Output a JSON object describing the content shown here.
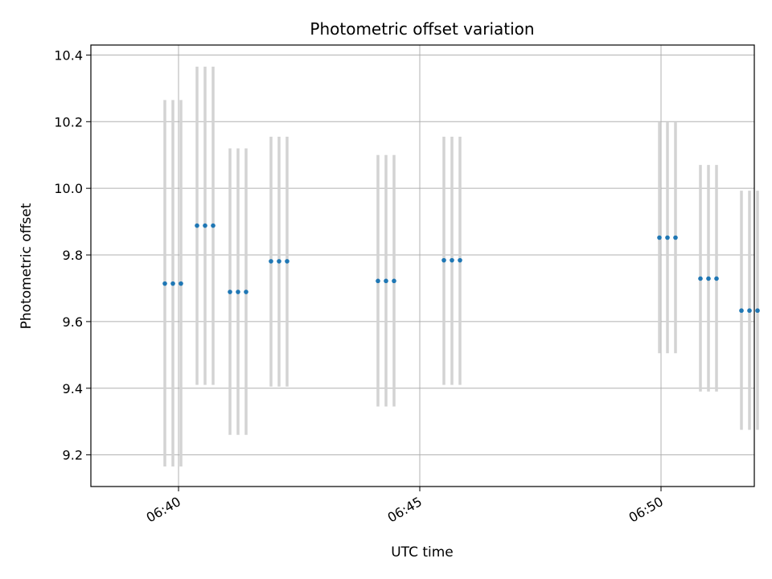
{
  "chart_data": {
    "type": "scatter",
    "title": "Photometric offset variation",
    "xlabel": "UTC time",
    "ylabel": "Photometric offset",
    "x_unit": "UTC minutes since 00:00",
    "xlim": [
      "06:38:11",
      "06:51:56"
    ],
    "ylim": [
      9.105,
      10.43
    ],
    "x_ticks": [
      "06:40",
      "06:45",
      "06:50"
    ],
    "y_ticks": [
      "9.2",
      "9.4",
      "9.6",
      "9.8",
      "10.0",
      "10.2",
      "10.4"
    ],
    "grid": true,
    "colors": {
      "points": "#1f77b4",
      "error_bars": "#d3d3d3"
    },
    "groups": [
      {
        "times": [
          "06:39:43",
          "06:39:53",
          "06:40:03"
        ],
        "value": 9.714,
        "lower": 9.165,
        "upper": 10.265
      },
      {
        "times": [
          "06:40:23",
          "06:40:33",
          "06:40:43"
        ],
        "value": 9.888,
        "lower": 9.41,
        "upper": 10.365
      },
      {
        "times": [
          "06:41:04",
          "06:41:14",
          "06:41:24"
        ],
        "value": 9.689,
        "lower": 9.26,
        "upper": 10.12
      },
      {
        "times": [
          "06:41:55",
          "06:42:05",
          "06:42:15"
        ],
        "value": 9.781,
        "lower": 9.405,
        "upper": 10.155
      },
      {
        "times": [
          "06:44:08",
          "06:44:18",
          "06:44:28"
        ],
        "value": 9.722,
        "lower": 9.345,
        "upper": 10.1
      },
      {
        "times": [
          "06:45:30",
          "06:45:40",
          "06:45:50"
        ],
        "value": 9.784,
        "lower": 9.41,
        "upper": 10.155
      },
      {
        "times": [
          "06:49:58",
          "06:50:08",
          "06:50:18"
        ],
        "value": 9.852,
        "lower": 9.505,
        "upper": 10.198
      },
      {
        "times": [
          "06:50:49",
          "06:50:59",
          "06:51:09"
        ],
        "value": 9.729,
        "lower": 9.39,
        "upper": 10.07
      },
      {
        "times": [
          "06:51:40",
          "06:51:50",
          "06:52:00"
        ],
        "value": 9.633,
        "lower": 9.275,
        "upper": 9.993
      }
    ]
  }
}
